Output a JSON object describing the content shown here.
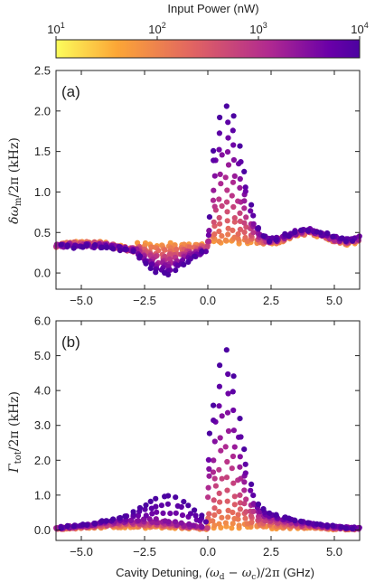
{
  "colorbar": {
    "label": "Input Power (nW)",
    "ticks": [
      {
        "base": "10",
        "exp": "1"
      },
      {
        "base": "10",
        "exp": "2"
      },
      {
        "base": "10",
        "exp": "3"
      },
      {
        "base": "10",
        "exp": "4"
      }
    ],
    "range_log10": [
      1,
      4
    ],
    "colors": [
      "#fcfd5c",
      "#fca636",
      "#e16462",
      "#b12a90",
      "#6a00a8",
      "#4c02a1"
    ]
  },
  "chart_data": [
    {
      "type": "scatter",
      "panel_label": "(a)",
      "ylabel_tex": "δω_m/2π (kHz)",
      "xlim": [
        -6,
        6
      ],
      "ylim": [
        -0.2,
        2.5
      ],
      "xticks": [
        "−5.0",
        "−2.5",
        "0.0",
        "2.5",
        "5.0"
      ],
      "yticks": [
        "0.0",
        "0.5",
        "1.0",
        "1.5",
        "2.0",
        "2.5"
      ],
      "ytick_values": [
        0,
        0.5,
        1.0,
        1.5,
        2.0,
        2.5
      ],
      "xtick_values": [
        -5,
        -2.5,
        0,
        2.5,
        5
      ],
      "color_scale": "input power (log10 nW)",
      "series_note": "points spanning detuning −6 to 6 GHz at power levels 10 to 10^4 nW"
    },
    {
      "type": "scatter",
      "panel_label": "(b)",
      "ylabel_tex": "Γ_tot/2π (kHz)",
      "xlabel": "Cavity Detuning, (ω_d − ω_c)/2π (GHz)",
      "xlim": [
        -6,
        6
      ],
      "ylim": [
        -0.3,
        6.0
      ],
      "xticks": [
        "−5.0",
        "−2.5",
        "0.0",
        "2.5",
        "5.0"
      ],
      "yticks": [
        "0.0",
        "1.0",
        "2.0",
        "3.0",
        "4.0",
        "5.0",
        "6.0"
      ],
      "ytick_values": [
        0,
        1,
        2,
        3,
        4,
        5,
        6
      ],
      "xtick_values": [
        -5,
        -2.5,
        0,
        2.5,
        5
      ]
    }
  ],
  "axis_labels": {
    "a_y_main": "δω",
    "a_y_sub": "m",
    "a_y_rest": "/2π (kHz)",
    "b_y_main": "Γ",
    "b_y_sub": "tot",
    "b_y_rest": "/2π (kHz)",
    "x_prefix": "Cavity Detuning, ",
    "x_math": "(ω",
    "x_sub_d": "d",
    "x_mid": " − ω",
    "x_sub_c": "c",
    "x_end": ")/2π",
    "x_unit": " (GHz)"
  }
}
